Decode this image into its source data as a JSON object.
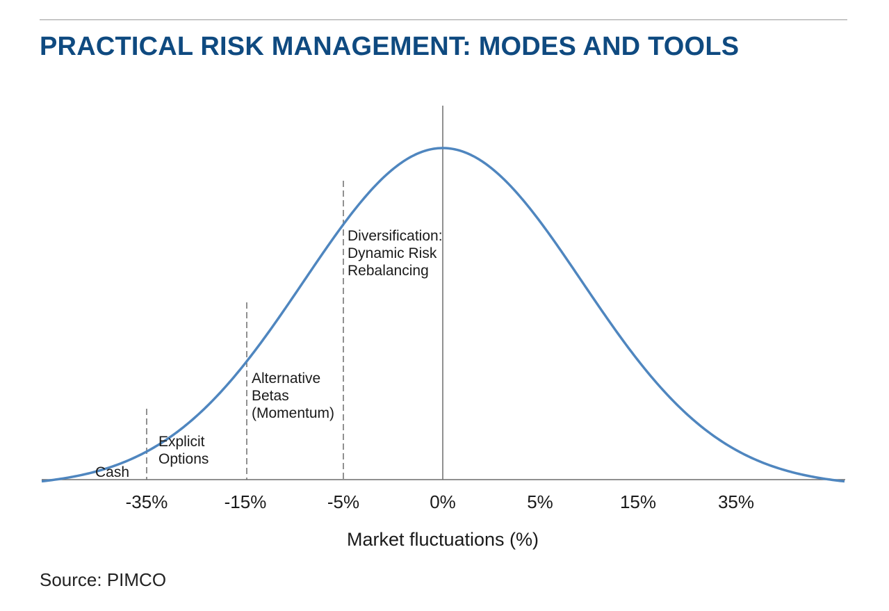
{
  "title": "PRACTICAL RISK MANAGEMENT: MODES AND TOOLS",
  "source": "Source: PIMCO",
  "colors": {
    "title": "#0f4a80",
    "curve": "#4f86bf",
    "axis": "#6b6b6b",
    "marker": "#6b6b6b"
  },
  "chart_data": {
    "type": "line",
    "curve": "normal-distribution",
    "xlabel": "Market fluctuations (%)",
    "ylabel": "",
    "x_ticks": [
      "-35%",
      "-15%",
      "-5%",
      "0%",
      "5%",
      "15%",
      "35%"
    ],
    "grid": false,
    "center_line_at": "0%",
    "zones": [
      {
        "name": "Cash",
        "boundary": "-35%",
        "label_lines": [
          "Cash"
        ]
      },
      {
        "name": "Explicit Options",
        "boundary": "-35%",
        "label_lines": [
          "Explicit",
          "Options"
        ]
      },
      {
        "name": "Alternative Betas (Momentum)",
        "boundary": "-15%",
        "label_lines": [
          "Alternative",
          "Betas",
          "(Momentum)"
        ]
      },
      {
        "name": "Diversification: Dynamic Risk Rebalancing",
        "boundary": "-5%",
        "label_lines": [
          "Diversification:",
          "Dynamic Risk",
          "Rebalancing"
        ]
      }
    ]
  }
}
